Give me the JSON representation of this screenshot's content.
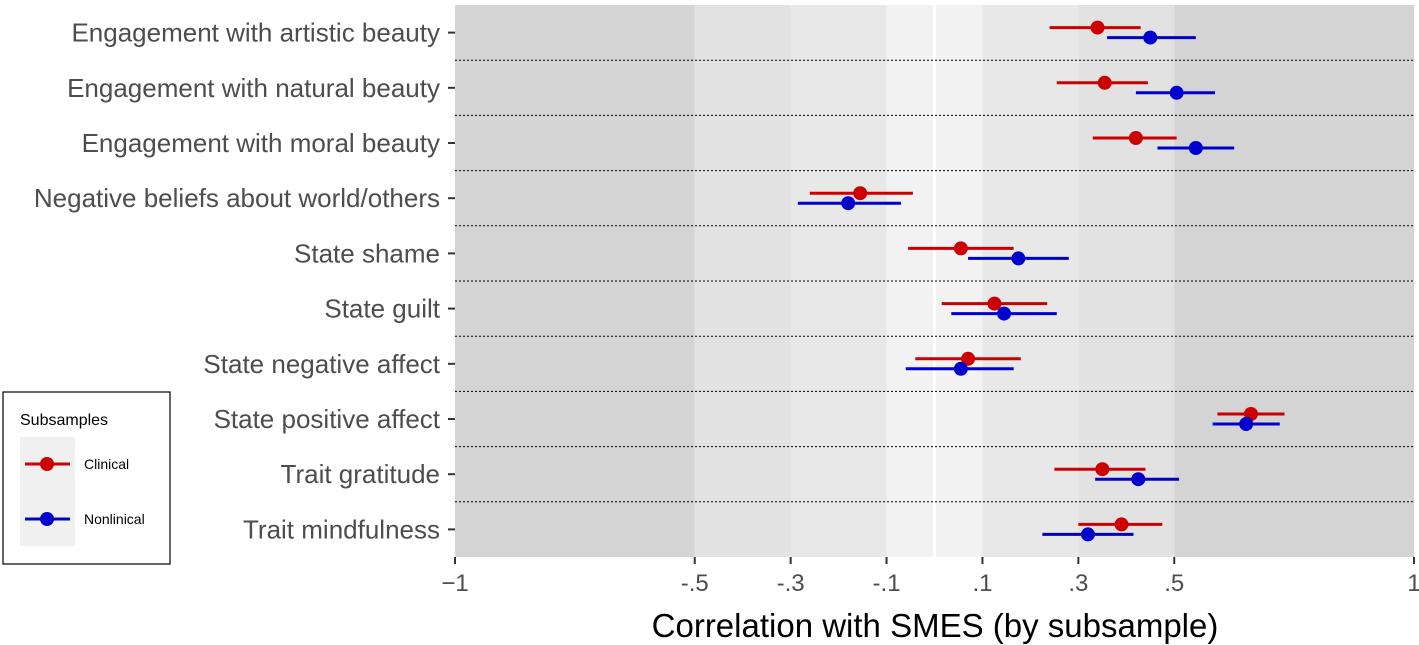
{
  "chart_data": {
    "type": "forest",
    "xlabel": "Correlation with SMES (by subsample)",
    "ylabel": "",
    "title": "",
    "xlim": [
      -1,
      1
    ],
    "x_ticks": [
      -1,
      -0.5,
      -0.3,
      -0.1,
      0.1,
      0.3,
      0.5,
      1
    ],
    "x_tick_labels": [
      "−1",
      "-.5",
      "-.3",
      "-.1",
      ".1",
      ".3",
      ".5",
      "1"
    ],
    "reference_line": 0,
    "background_bands": [
      {
        "from": -1,
        "to": -0.5,
        "shade": "#d4d4d4"
      },
      {
        "from": -0.5,
        "to": -0.3,
        "shade": "#e2e2e2"
      },
      {
        "from": -0.3,
        "to": -0.1,
        "shade": "#e8e8e8"
      },
      {
        "from": -0.1,
        "to": 0.1,
        "shade": "#f2f2f2"
      },
      {
        "from": 0.1,
        "to": 0.3,
        "shade": "#e8e8e8"
      },
      {
        "from": 0.3,
        "to": 0.5,
        "shade": "#e2e2e2"
      },
      {
        "from": 0.5,
        "to": 1,
        "shade": "#d4d4d4"
      }
    ],
    "categories": [
      "Engagement with artistic beauty",
      "Engagement with natural beauty",
      "Engagement with moral beauty",
      "Negative beliefs about world/others",
      "State shame",
      "State guilt",
      "State negative affect",
      "State positive affect",
      "Trait gratitude",
      "Trait mindfulness"
    ],
    "series": [
      {
        "name": "Clinical",
        "color": "#cc0000",
        "points": [
          {
            "est": 0.34,
            "lo": 0.24,
            "hi": 0.43
          },
          {
            "est": 0.355,
            "lo": 0.255,
            "hi": 0.445
          },
          {
            "est": 0.42,
            "lo": 0.33,
            "hi": 0.505
          },
          {
            "est": -0.155,
            "lo": -0.26,
            "hi": -0.045
          },
          {
            "est": 0.055,
            "lo": -0.055,
            "hi": 0.165
          },
          {
            "est": 0.125,
            "lo": 0.015,
            "hi": 0.235
          },
          {
            "est": 0.07,
            "lo": -0.04,
            "hi": 0.18
          },
          {
            "est": 0.66,
            "lo": 0.59,
            "hi": 0.73
          },
          {
            "est": 0.35,
            "lo": 0.25,
            "hi": 0.44
          },
          {
            "est": 0.39,
            "lo": 0.3,
            "hi": 0.475
          }
        ]
      },
      {
        "name": "Nonlinical",
        "color": "#0000cc",
        "points": [
          {
            "est": 0.45,
            "lo": 0.36,
            "hi": 0.545
          },
          {
            "est": 0.505,
            "lo": 0.42,
            "hi": 0.585
          },
          {
            "est": 0.545,
            "lo": 0.465,
            "hi": 0.625
          },
          {
            "est": -0.18,
            "lo": -0.285,
            "hi": -0.07
          },
          {
            "est": 0.175,
            "lo": 0.07,
            "hi": 0.28
          },
          {
            "est": 0.145,
            "lo": 0.035,
            "hi": 0.255
          },
          {
            "est": 0.055,
            "lo": -0.06,
            "hi": 0.165
          },
          {
            "est": 0.65,
            "lo": 0.58,
            "hi": 0.72
          },
          {
            "est": 0.425,
            "lo": 0.335,
            "hi": 0.51
          },
          {
            "est": 0.32,
            "lo": 0.225,
            "hi": 0.415
          }
        ]
      }
    ],
    "legend": {
      "title": "Subsamples",
      "position": "bottom-left"
    }
  }
}
